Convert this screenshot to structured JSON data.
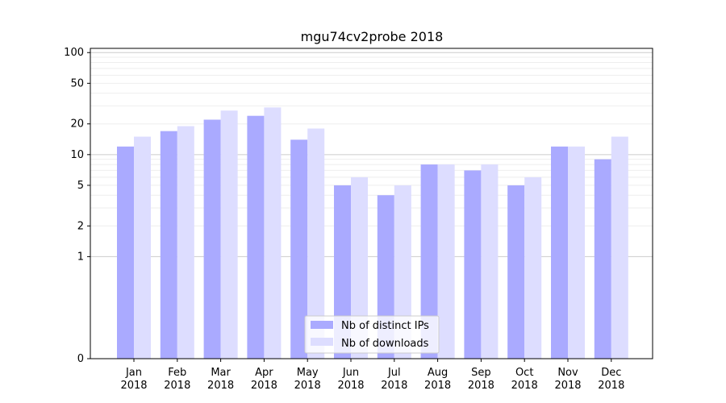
{
  "chart_data": {
    "type": "bar",
    "title": "mgu74cv2probe 2018",
    "categories": [
      [
        "Jan",
        "2018"
      ],
      [
        "Feb",
        "2018"
      ],
      [
        "Mar",
        "2018"
      ],
      [
        "Apr",
        "2018"
      ],
      [
        "May",
        "2018"
      ],
      [
        "Jun",
        "2018"
      ],
      [
        "Jul",
        "2018"
      ],
      [
        "Aug",
        "2018"
      ],
      [
        "Sep",
        "2018"
      ],
      [
        "Oct",
        "2018"
      ],
      [
        "Nov",
        "2018"
      ],
      [
        "Dec",
        "2018"
      ]
    ],
    "series": [
      {
        "name": "Nb of distinct IPs",
        "color": "#aaaaff",
        "values": [
          12,
          17,
          22,
          24,
          14,
          5,
          4,
          8,
          7,
          5,
          12,
          9
        ]
      },
      {
        "name": "Nb of downloads",
        "color": "#ddddff",
        "values": [
          15,
          19,
          27,
          29,
          18,
          6,
          5,
          8,
          8,
          6,
          12,
          15
        ]
      }
    ],
    "yscale": "symlog",
    "ylim": [
      0,
      110
    ],
    "yticks": [
      0,
      1,
      2,
      5,
      10,
      20,
      50,
      100
    ],
    "ytick_labels": [
      "0",
      "1",
      "2",
      "5",
      "10",
      "20",
      "50",
      "100"
    ],
    "grid": true,
    "legend_position": "bottom-center"
  }
}
